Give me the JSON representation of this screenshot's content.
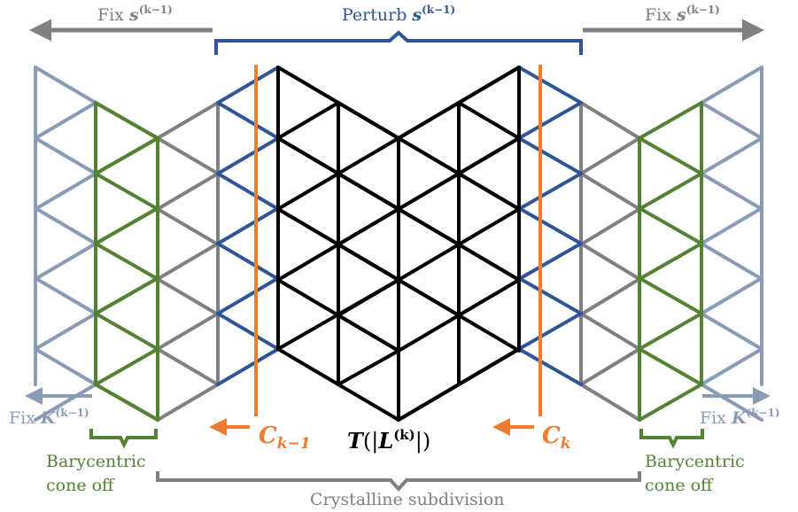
{
  "colors": {
    "outer": "#8a9bb5",
    "green": "#548235",
    "gray": "#808080",
    "blue": "#2f5597",
    "black": "#000000",
    "orange": "#ed7d31",
    "crystal": "#7f7f7f"
  },
  "labels": {
    "fix_s_left": {
      "text": "Fix ",
      "sym": "s",
      "sup": "(k−1)"
    },
    "perturb": {
      "text": "Perturb ",
      "sym": "s",
      "sup": "(k−1)"
    },
    "fix_s_right": {
      "text": "Fix ",
      "sym": "s",
      "sup": "(k−1)"
    },
    "fix_K_left": {
      "text": "Fix ",
      "sym": "K",
      "sup": "(k−1)"
    },
    "fix_K_right": {
      "text": "Fix ",
      "sym": "K",
      "sup": "(k−1)"
    },
    "c_left": {
      "sym": "C",
      "sub": "k−1"
    },
    "c_right": {
      "sym": "C",
      "sub": "k"
    },
    "center": {
      "pre": "T",
      "mid": "(|",
      "sym": "L",
      "sup": "(k)",
      "post": "|)"
    },
    "bary_left": [
      "Barycentric",
      "cone off"
    ],
    "bary_right": [
      "Barycentric",
      "cone off"
    ],
    "crystalline": "Crystalline subdivision"
  }
}
